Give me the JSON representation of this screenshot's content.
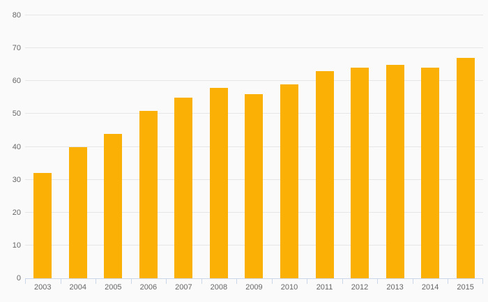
{
  "chart_data": {
    "type": "bar",
    "title": "",
    "xlabel": "",
    "ylabel": "",
    "categories": [
      "2003",
      "2004",
      "2005",
      "2006",
      "2007",
      "2008",
      "2009",
      "2010",
      "2011",
      "2012",
      "2013",
      "2014",
      "2015"
    ],
    "values": [
      32,
      40,
      44,
      51,
      55,
      58,
      56,
      59,
      63,
      64,
      65,
      64,
      67
    ],
    "ylim": [
      0,
      80
    ],
    "yticks": [
      0,
      10,
      20,
      30,
      40,
      50,
      60,
      70,
      80
    ],
    "grid": true,
    "legend": "none",
    "colors": {
      "bar": "#FAB005",
      "background": "#FAFAFA",
      "gridline": "#E6E6E6",
      "axis_line": "#CCD6EB",
      "tick": "#CCD6EB",
      "label_text": "#666666"
    }
  }
}
